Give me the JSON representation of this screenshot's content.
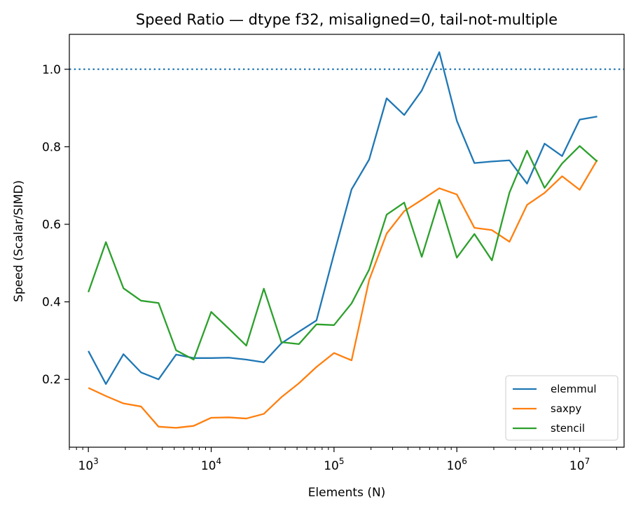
{
  "chart_data": {
    "type": "line",
    "title": "Speed Ratio — dtype f32, misaligned=0, tail-not-multiple",
    "xlabel": "Elements (N)",
    "ylabel": "Speed (Scalar/SIMD)",
    "xscale": "log",
    "xlim": [
      700,
      23000000
    ],
    "ylim": [
      0.025,
      1.09
    ],
    "x_ticks": [
      {
        "value": 1000,
        "base": "10",
        "exp": "3"
      },
      {
        "value": 10000,
        "base": "10",
        "exp": "4"
      },
      {
        "value": 100000,
        "base": "10",
        "exp": "5"
      },
      {
        "value": 1000000,
        "base": "10",
        "exp": "6"
      },
      {
        "value": 10000000,
        "base": "10",
        "exp": "7"
      }
    ],
    "y_ticks": [
      0.2,
      0.4,
      0.6,
      0.8,
      1.0
    ],
    "y_tick_labels": [
      "0.2",
      "0.4",
      "0.6",
      "0.8",
      "1.0"
    ],
    "reference_line": {
      "y": 1.0,
      "style": "dotted",
      "color": "#1f77b4"
    },
    "grid": false,
    "legend_position": "lower-right",
    "x": [
      1000,
      1389,
      1931,
      2683,
      3728,
      5179,
      7197,
      10000,
      13895,
      19307,
      26827,
      37276,
      51795,
      71969,
      100000,
      138950,
      193070,
      268270,
      372760,
      517950,
      719690,
      1000000,
      1389500,
      1930700,
      2682700,
      3727600,
      5179500,
      7196900,
      10000000,
      13895000
    ],
    "series": [
      {
        "name": "elemmul",
        "color": "#1f77b4",
        "values": [
          0.273,
          0.188,
          0.265,
          0.218,
          0.2,
          0.264,
          0.255,
          0.255,
          0.256,
          0.251,
          0.244,
          0.293,
          0.323,
          0.352,
          0.524,
          0.69,
          0.767,
          0.925,
          0.882,
          0.945,
          1.044,
          0.867,
          0.758,
          0.762,
          0.765,
          0.705,
          0.808,
          0.776,
          0.87,
          0.878
        ]
      },
      {
        "name": "saxpy",
        "color": "#ff7f0e",
        "values": [
          0.178,
          0.157,
          0.138,
          0.13,
          0.078,
          0.075,
          0.08,
          0.101,
          0.102,
          0.099,
          0.111,
          0.154,
          0.19,
          0.232,
          0.268,
          0.249,
          0.456,
          0.576,
          0.634,
          0.663,
          0.693,
          0.677,
          0.591,
          0.585,
          0.555,
          0.65,
          0.681,
          0.724,
          0.689,
          0.766
        ]
      },
      {
        "name": "stencil",
        "color": "#2ca02c",
        "values": [
          0.425,
          0.554,
          0.435,
          0.403,
          0.397,
          0.275,
          0.251,
          0.374,
          0.331,
          0.287,
          0.434,
          0.296,
          0.291,
          0.342,
          0.34,
          0.396,
          0.483,
          0.625,
          0.656,
          0.516,
          0.663,
          0.514,
          0.575,
          0.507,
          0.682,
          0.79,
          0.694,
          0.757,
          0.802,
          0.762
        ]
      }
    ]
  }
}
